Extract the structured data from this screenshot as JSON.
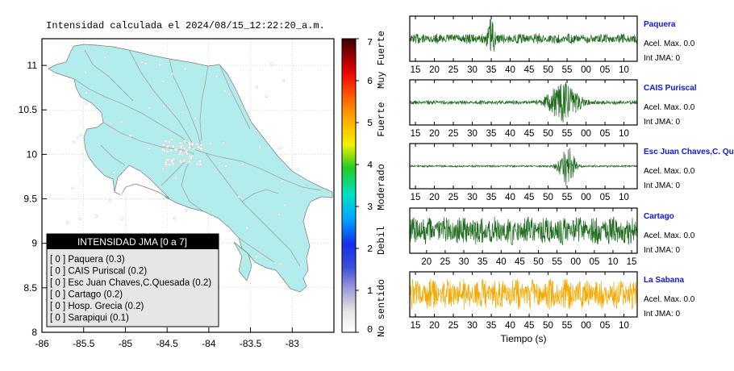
{
  "map": {
    "title": "Intensidad calculada el 2024/08/15_12:22:20_a.m.",
    "lat_ticks": [
      "8",
      "8.5",
      "9",
      "9.5",
      "10",
      "10.5",
      "11"
    ],
    "lon_ticks": [
      "-86",
      "-85.5",
      "-85",
      "-84.5",
      "-84",
      "-83.5",
      "-83"
    ],
    "colorbar": {
      "ticks": [
        "0",
        "1",
        "2",
        "3",
        "4",
        "5",
        "6",
        "7"
      ],
      "labels": [
        "No sentido",
        "Debil",
        "Moderado",
        "Fuerte",
        "Muy Fuerte"
      ]
    },
    "legend": {
      "header": "INTENSIDAD JMA [0 a 7]",
      "rows": [
        "[ 0 ] Paquera (0.3)",
        "[ 0 ] CAIS Puriscal (0.2)",
        "[ 0 ] Esc Juan Chaves,C.Quesada (0.2)",
        "[ 0 ] Cartago (0.2)",
        "[ 0 ] Hosp. Grecia (0.2)",
        "[ 0 ] Sarapiqui (0.1)"
      ]
    }
  },
  "chart_data": [
    {
      "type": "line",
      "station": "Paquera",
      "title": "Paquera",
      "accel_label": "Acel. Max. 0.0",
      "int_label": "Int JMA: 0",
      "color": "#1e6b1e",
      "x_ticks": [
        "15",
        "20",
        "25",
        "30",
        "35",
        "40",
        "45",
        "50",
        "55",
        "00",
        "05",
        "10"
      ],
      "x_tick_seconds": [
        15,
        20,
        25,
        30,
        35,
        40,
        45,
        50,
        55,
        60,
        65,
        70
      ],
      "xlim": [
        13.5,
        73.5
      ],
      "base_amplitude": 0.25,
      "bursts": [
        {
          "t": 35,
          "amp": 1.0,
          "width": 0.8
        }
      ]
    },
    {
      "type": "line",
      "station": "CAIS Puriscal",
      "title": "CAIS Puriscal",
      "accel_label": "Acel. Max. 0.0",
      "int_label": "Int JMA: 0",
      "color": "#1e6b1e",
      "x_ticks": [
        "15",
        "20",
        "25",
        "30",
        "35",
        "40",
        "45",
        "50",
        "55",
        "00",
        "05",
        "10"
      ],
      "x_tick_seconds": [
        15,
        20,
        25,
        30,
        35,
        40,
        45,
        50,
        55,
        60,
        65,
        70
      ],
      "xlim": [
        13.5,
        73.5
      ],
      "base_amplitude": 0.1,
      "bursts": [
        {
          "t": 54,
          "amp": 0.9,
          "width": 4
        }
      ]
    },
    {
      "type": "line",
      "station": "Esc Juan Chaves,C.Quesada",
      "title": "Esc Juan Chaves,C. Qu",
      "accel_label": "Acel. Max. 0.0",
      "int_label": "Int JMA: 0",
      "color": "#1e6b1e",
      "x_ticks": [
        "15",
        "20",
        "25",
        "30",
        "35",
        "40",
        "45",
        "50",
        "55",
        "00",
        "05",
        "10"
      ],
      "x_tick_seconds": [
        15,
        20,
        25,
        30,
        35,
        40,
        45,
        50,
        55,
        60,
        65,
        70
      ],
      "xlim": [
        13.5,
        73.5
      ],
      "base_amplitude": 0.05,
      "bursts": [
        {
          "t": 55,
          "amp": 1.0,
          "width": 2
        }
      ]
    },
    {
      "type": "line",
      "station": "Cartago",
      "title": "Cartago",
      "accel_label": "Acel. Max. 0.0",
      "int_label": "Int JMA: 0",
      "color": "#1e6b1e",
      "x_ticks": [
        "20",
        "25",
        "30",
        "35",
        "40",
        "45",
        "50",
        "55",
        "00",
        "05",
        "10",
        "15"
      ],
      "x_tick_seconds": [
        20,
        25,
        30,
        35,
        40,
        45,
        50,
        55,
        60,
        65,
        70,
        75
      ],
      "xlim": [
        15.5,
        76.5
      ],
      "base_amplitude": 0.7,
      "bursts": []
    },
    {
      "type": "line",
      "station": "La Sabana",
      "title": "La Sabana",
      "accel_label": "Acel. Max. 0.0",
      "int_label": "Int JMA: 0",
      "color": "#f5a800",
      "x_ticks": [
        "15",
        "20",
        "25",
        "30",
        "35",
        "40",
        "45",
        "50",
        "55",
        "00",
        "05",
        "10"
      ],
      "x_tick_seconds": [
        15,
        20,
        25,
        30,
        35,
        40,
        45,
        50,
        55,
        60,
        65,
        70
      ],
      "xlim": [
        13.5,
        73.5
      ],
      "base_amplitude": 0.75,
      "bursts": [],
      "xlabel": "Tiempo (s)"
    }
  ]
}
